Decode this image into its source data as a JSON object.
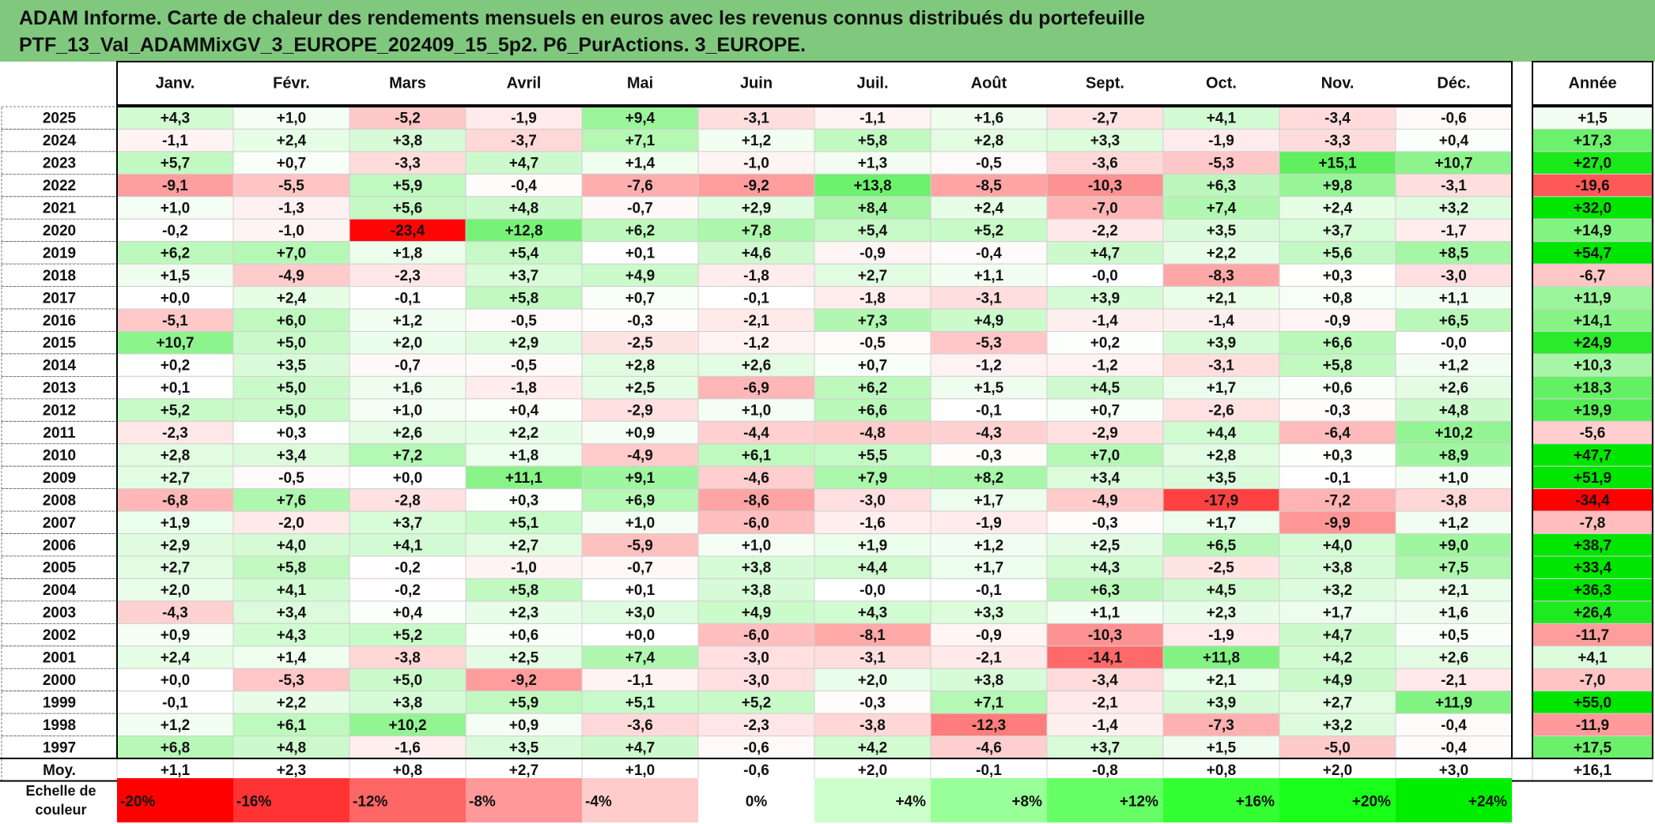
{
  "title": {
    "line1": "ADAM Informe. Carte de chaleur des rendements mensuels en euros avec les revenus connus distribués du portefeuille",
    "line2": "PTF_13_Val_ADAMMixGV_3_EUROPE_202409_15_5p2. P6_PurActions. 3_EUROPE."
  },
  "chart_data": {
    "type": "heatmap",
    "title": "ADAM Informe. Carte de chaleur des rendements mensuels en euros avec les revenus connus distribués du portefeuille PTF_13_Val_ADAMMixGV_3_EUROPE_202409_15_5p2. P6_PurActions. 3_EUROPE.",
    "columns": [
      "Janv.",
      "Févr.",
      "Mars",
      "Avril",
      "Mai",
      "Juin",
      "Juil.",
      "Août",
      "Sept.",
      "Oct.",
      "Nov.",
      "Déc."
    ],
    "annual_header": "Année",
    "rows": [
      {
        "year": "2025",
        "values": [
          "+4,3",
          "+1,0",
          "-5,2",
          "-1,9",
          "+9,4",
          "-3,1",
          "-1,1",
          "+1,6",
          "-2,7",
          "+4,1",
          "-3,4",
          "-0,6"
        ],
        "annual": "+1,5"
      },
      {
        "year": "2024",
        "values": [
          "-1,1",
          "+2,4",
          "+3,8",
          "-3,7",
          "+7,1",
          "+1,2",
          "+5,8",
          "+2,8",
          "+3,3",
          "-1,9",
          "-3,3",
          "+0,4"
        ],
        "annual": "+17,3"
      },
      {
        "year": "2023",
        "values": [
          "+5,7",
          "+0,7",
          "-3,3",
          "+4,7",
          "+1,4",
          "-1,0",
          "+1,3",
          "-0,5",
          "-3,6",
          "-5,3",
          "+15,1",
          "+10,7"
        ],
        "annual": "+27,0"
      },
      {
        "year": "2022",
        "values": [
          "-9,1",
          "-5,5",
          "+5,9",
          "-0,4",
          "-7,6",
          "-9,2",
          "+13,8",
          "-8,5",
          "-10,3",
          "+6,3",
          "+9,8",
          "-3,1"
        ],
        "annual": "-19,6"
      },
      {
        "year": "2021",
        "values": [
          "+1,0",
          "-1,3",
          "+5,6",
          "+4,8",
          "-0,7",
          "+2,9",
          "+8,4",
          "+2,4",
          "-7,0",
          "+7,4",
          "+2,4",
          "+3,2"
        ],
        "annual": "+32,0"
      },
      {
        "year": "2020",
        "values": [
          "-0,2",
          "-1,0",
          "-23,4",
          "+12,8",
          "+6,2",
          "+7,8",
          "+5,4",
          "+5,2",
          "-2,2",
          "+3,5",
          "+3,7",
          "-1,7"
        ],
        "annual": "+14,9"
      },
      {
        "year": "2019",
        "values": [
          "+6,2",
          "+7,0",
          "+1,8",
          "+5,4",
          "+0,1",
          "+4,6",
          "-0,9",
          "-0,4",
          "+4,7",
          "+2,2",
          "+5,6",
          "+8,5"
        ],
        "annual": "+54,7"
      },
      {
        "year": "2018",
        "values": [
          "+1,5",
          "-4,9",
          "-2,3",
          "+3,7",
          "+4,9",
          "-1,8",
          "+2,7",
          "+1,1",
          "-0,0",
          "-8,3",
          "+0,3",
          "-3,0"
        ],
        "annual": "-6,7"
      },
      {
        "year": "2017",
        "values": [
          "+0,0",
          "+2,4",
          "-0,1",
          "+5,8",
          "+0,7",
          "-0,1",
          "-1,8",
          "-3,1",
          "+3,9",
          "+2,1",
          "+0,8",
          "+1,1"
        ],
        "annual": "+11,9"
      },
      {
        "year": "2016",
        "values": [
          "-5,1",
          "+6,0",
          "+1,2",
          "-0,5",
          "-0,3",
          "-2,1",
          "+7,3",
          "+4,9",
          "-1,4",
          "-1,4",
          "-0,9",
          "+6,5"
        ],
        "annual": "+14,1"
      },
      {
        "year": "2015",
        "values": [
          "+10,7",
          "+5,0",
          "+2,0",
          "+2,9",
          "-2,5",
          "-1,2",
          "-0,5",
          "-5,3",
          "+0,2",
          "+3,9",
          "+6,6",
          "-0,0"
        ],
        "annual": "+24,9"
      },
      {
        "year": "2014",
        "values": [
          "+0,2",
          "+3,5",
          "-0,7",
          "-0,5",
          "+2,8",
          "+2,6",
          "+0,7",
          "-1,2",
          "-1,2",
          "-3,1",
          "+5,8",
          "+1,2"
        ],
        "annual": "+10,3"
      },
      {
        "year": "2013",
        "values": [
          "+0,1",
          "+5,0",
          "+1,6",
          "-1,8",
          "+2,5",
          "-6,9",
          "+6,2",
          "+1,5",
          "+4,5",
          "+1,7",
          "+0,6",
          "+2,6"
        ],
        "annual": "+18,3"
      },
      {
        "year": "2012",
        "values": [
          "+5,2",
          "+5,0",
          "+1,0",
          "+0,4",
          "-2,9",
          "+1,0",
          "+6,6",
          "-0,1",
          "+0,7",
          "-2,6",
          "-0,3",
          "+4,8"
        ],
        "annual": "+19,9"
      },
      {
        "year": "2011",
        "values": [
          "-2,3",
          "+0,3",
          "+2,6",
          "+2,2",
          "+0,9",
          "-4,4",
          "-4,8",
          "-4,3",
          "-2,9",
          "+4,4",
          "-6,4",
          "+10,2"
        ],
        "annual": "-5,6"
      },
      {
        "year": "2010",
        "values": [
          "+2,8",
          "+3,4",
          "+7,2",
          "+1,8",
          "-4,9",
          "+6,1",
          "+5,5",
          "-0,3",
          "+7,0",
          "+2,8",
          "+0,3",
          "+8,9"
        ],
        "annual": "+47,7"
      },
      {
        "year": "2009",
        "values": [
          "+2,7",
          "-0,5",
          "+0,0",
          "+11,1",
          "+9,1",
          "-4,6",
          "+7,9",
          "+8,2",
          "+3,4",
          "+3,5",
          "-0,1",
          "+1,0"
        ],
        "annual": "+51,9"
      },
      {
        "year": "2008",
        "values": [
          "-6,8",
          "+7,6",
          "-2,8",
          "+0,3",
          "+6,9",
          "-8,6",
          "-3,0",
          "+1,7",
          "-4,9",
          "-17,9",
          "-7,2",
          "-3,8"
        ],
        "annual": "-34,4"
      },
      {
        "year": "2007",
        "values": [
          "+1,9",
          "-2,0",
          "+3,7",
          "+5,1",
          "+1,0",
          "-6,0",
          "-1,6",
          "-1,9",
          "-0,3",
          "+1,7",
          "-9,9",
          "+1,2"
        ],
        "annual": "-7,8"
      },
      {
        "year": "2006",
        "values": [
          "+2,9",
          "+4,0",
          "+4,1",
          "+2,7",
          "-5,9",
          "+1,0",
          "+1,9",
          "+1,2",
          "+2,5",
          "+6,5",
          "+4,0",
          "+9,0"
        ],
        "annual": "+38,7"
      },
      {
        "year": "2005",
        "values": [
          "+2,7",
          "+5,8",
          "-0,2",
          "-1,0",
          "-0,7",
          "+3,8",
          "+4,4",
          "+1,7",
          "+4,3",
          "-2,5",
          "+3,8",
          "+7,5"
        ],
        "annual": "+33,4"
      },
      {
        "year": "2004",
        "values": [
          "+2,0",
          "+4,1",
          "-0,2",
          "+5,8",
          "+0,1",
          "+3,8",
          "-0,0",
          "-0,1",
          "+6,3",
          "+4,5",
          "+3,2",
          "+2,1"
        ],
        "annual": "+36,3"
      },
      {
        "year": "2003",
        "values": [
          "-4,3",
          "+3,4",
          "+0,4",
          "+2,3",
          "+3,0",
          "+4,9",
          "+4,3",
          "+3,3",
          "+1,1",
          "+2,3",
          "+1,7",
          "+1,6"
        ],
        "annual": "+26,4"
      },
      {
        "year": "2002",
        "values": [
          "+0,9",
          "+4,3",
          "+5,2",
          "+0,6",
          "+0,0",
          "-6,0",
          "-8,1",
          "-0,9",
          "-10,3",
          "-1,9",
          "+4,7",
          "+0,5"
        ],
        "annual": "-11,7"
      },
      {
        "year": "2001",
        "values": [
          "+2,4",
          "+1,4",
          "-3,8",
          "+2,5",
          "+7,4",
          "-3,0",
          "-3,1",
          "-2,1",
          "-14,1",
          "+11,8",
          "+4,2",
          "+2,6"
        ],
        "annual": "+4,1"
      },
      {
        "year": "2000",
        "values": [
          "+0,0",
          "-5,3",
          "+5,0",
          "-9,2",
          "-1,1",
          "-3,0",
          "+2,0",
          "+3,8",
          "-3,4",
          "+2,1",
          "+4,9",
          "-2,1"
        ],
        "annual": "-7,0"
      },
      {
        "year": "1999",
        "values": [
          "-0,1",
          "+2,2",
          "+3,8",
          "+5,9",
          "+5,1",
          "+5,2",
          "-0,3",
          "+7,1",
          "-2,1",
          "+3,9",
          "+2,7",
          "+11,9"
        ],
        "annual": "+55,0"
      },
      {
        "year": "1998",
        "values": [
          "+1,2",
          "+6,1",
          "+10,2",
          "+0,9",
          "-3,6",
          "-2,3",
          "-3,8",
          "-12,3",
          "-1,4",
          "-7,3",
          "+3,2",
          "-0,4"
        ],
        "annual": "-11,9"
      },
      {
        "year": "1997",
        "values": [
          "+6,8",
          "+4,8",
          "-1,6",
          "+3,5",
          "+4,7",
          "-0,6",
          "+4,2",
          "-4,6",
          "+3,7",
          "+1,5",
          "-5,0",
          "-0,4"
        ],
        "annual": "+17,5"
      }
    ],
    "average": {
      "label": "Moy.",
      "values": [
        "+1,1",
        "+2,3",
        "+0,8",
        "+2,7",
        "+1,0",
        "-0,6",
        "+2,0",
        "-0,1",
        "-0,8",
        "+0,8",
        "+2,0",
        "+3,0"
      ],
      "annual": "+16,1"
    },
    "scale": {
      "label_line1": "Echelle de",
      "label_line2": "couleur",
      "items": [
        {
          "label": "-20%",
          "value": -20,
          "color": "#ff0000"
        },
        {
          "label": "-16%",
          "value": -16,
          "color": "#ff3333"
        },
        {
          "label": "-12%",
          "value": -12,
          "color": "#ff6666"
        },
        {
          "label": "-8%",
          "value": -8,
          "color": "#ff9999"
        },
        {
          "label": "-4%",
          "value": -4,
          "color": "#ffcccc"
        },
        {
          "label": "0%",
          "value": 0,
          "color": "#ffffff"
        },
        {
          "label": "+4%",
          "value": 4,
          "color": "#ccffcc"
        },
        {
          "label": "+8%",
          "value": 8,
          "color": "#99ff99"
        },
        {
          "label": "+12%",
          "value": 12,
          "color": "#66ff66"
        },
        {
          "label": "+16%",
          "value": 16,
          "color": "#33ff33"
        },
        {
          "label": "+20%",
          "value": 20,
          "color": "#1aff1a"
        },
        {
          "label": "+24%",
          "value": 24,
          "color": "#00ee00"
        }
      ]
    }
  },
  "colors": {
    "title_bg": "#80c87e",
    "negative_max": "#ff0000",
    "positive_max": "#00e600",
    "neutral": "#ffffff"
  }
}
